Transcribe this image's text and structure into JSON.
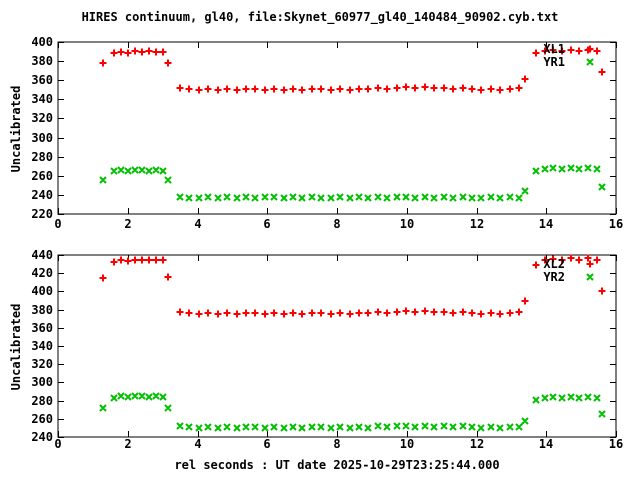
{
  "title": "HIRES continuum, gl40, file:Skynet_60977_gl40_140484_90902.cyb.txt",
  "xlabel": "rel seconds : UT date 2025-10-29T23:25:44.000",
  "colors": {
    "series_plus": "#ff0000",
    "series_cross": "#00c000",
    "frame": "#000000",
    "background": "#ffffff",
    "text": "#000000"
  },
  "chart_data": [
    {
      "type": "scatter",
      "ylabel": "Uncalibrated",
      "xlim": [
        0,
        16
      ],
      "ylim": [
        220,
        400
      ],
      "xtick_step": 2,
      "ytick_step": 20,
      "grid": false,
      "legend_position": "top-right-inside",
      "series": [
        {
          "name": "XL1",
          "marker": "plus",
          "color": "#ff0000",
          "points": [
            [
              1.3,
              378
            ],
            [
              1.6,
              389
            ],
            [
              1.8,
              390
            ],
            [
              2.0,
              389
            ],
            [
              2.2,
              391
            ],
            [
              2.4,
              390
            ],
            [
              2.6,
              391
            ],
            [
              2.8,
              390
            ],
            [
              3.0,
              390
            ],
            [
              3.15,
              378
            ],
            [
              3.5,
              352
            ],
            [
              3.77,
              351
            ],
            [
              4.04,
              350
            ],
            [
              4.31,
              351
            ],
            [
              4.58,
              350
            ],
            [
              4.85,
              351
            ],
            [
              5.12,
              350
            ],
            [
              5.39,
              351
            ],
            [
              5.66,
              351
            ],
            [
              5.93,
              350
            ],
            [
              6.2,
              351
            ],
            [
              6.47,
              350
            ],
            [
              6.74,
              351
            ],
            [
              7.01,
              350
            ],
            [
              7.28,
              351
            ],
            [
              7.55,
              351
            ],
            [
              7.82,
              350
            ],
            [
              8.09,
              351
            ],
            [
              8.36,
              350
            ],
            [
              8.63,
              351
            ],
            [
              8.9,
              351
            ],
            [
              9.17,
              352
            ],
            [
              9.44,
              351
            ],
            [
              9.71,
              352
            ],
            [
              9.98,
              353
            ],
            [
              10.25,
              352
            ],
            [
              10.52,
              353
            ],
            [
              10.79,
              352
            ],
            [
              11.06,
              352
            ],
            [
              11.33,
              351
            ],
            [
              11.6,
              352
            ],
            [
              11.87,
              351
            ],
            [
              12.14,
              350
            ],
            [
              12.41,
              351
            ],
            [
              12.68,
              350
            ],
            [
              12.95,
              351
            ],
            [
              13.22,
              352
            ],
            [
              13.4,
              361
            ],
            [
              13.7,
              388
            ],
            [
              13.95,
              391
            ],
            [
              14.2,
              392
            ],
            [
              14.45,
              391
            ],
            [
              14.7,
              392
            ],
            [
              14.95,
              391
            ],
            [
              15.2,
              392
            ],
            [
              15.45,
              391
            ],
            [
              15.6,
              369
            ]
          ]
        },
        {
          "name": "YR1",
          "marker": "cross",
          "color": "#00c000",
          "points": [
            [
              1.3,
              256
            ],
            [
              1.6,
              265
            ],
            [
              1.8,
              266
            ],
            [
              2.0,
              265
            ],
            [
              2.2,
              266
            ],
            [
              2.4,
              266
            ],
            [
              2.6,
              265
            ],
            [
              2.8,
              266
            ],
            [
              3.0,
              265
            ],
            [
              3.15,
              256
            ],
            [
              3.5,
              238
            ],
            [
              3.77,
              237
            ],
            [
              4.04,
              237
            ],
            [
              4.31,
              238
            ],
            [
              4.58,
              237
            ],
            [
              4.85,
              238
            ],
            [
              5.12,
              237
            ],
            [
              5.39,
              238
            ],
            [
              5.66,
              237
            ],
            [
              5.93,
              238
            ],
            [
              6.2,
              238
            ],
            [
              6.47,
              237
            ],
            [
              6.74,
              238
            ],
            [
              7.01,
              237
            ],
            [
              7.28,
              238
            ],
            [
              7.55,
              237
            ],
            [
              7.82,
              237
            ],
            [
              8.09,
              238
            ],
            [
              8.36,
              237
            ],
            [
              8.63,
              238
            ],
            [
              8.9,
              237
            ],
            [
              9.17,
              238
            ],
            [
              9.44,
              237
            ],
            [
              9.71,
              238
            ],
            [
              9.98,
              238
            ],
            [
              10.25,
              237
            ],
            [
              10.52,
              238
            ],
            [
              10.79,
              237
            ],
            [
              11.06,
              238
            ],
            [
              11.33,
              237
            ],
            [
              11.6,
              238
            ],
            [
              11.87,
              237
            ],
            [
              12.14,
              237
            ],
            [
              12.41,
              238
            ],
            [
              12.68,
              237
            ],
            [
              12.95,
              238
            ],
            [
              13.22,
              237
            ],
            [
              13.4,
              244
            ],
            [
              13.7,
              265
            ],
            [
              13.95,
              267
            ],
            [
              14.2,
              268
            ],
            [
              14.45,
              267
            ],
            [
              14.7,
              268
            ],
            [
              14.95,
              267
            ],
            [
              15.2,
              268
            ],
            [
              15.45,
              267
            ],
            [
              15.6,
              248
            ]
          ]
        }
      ]
    },
    {
      "type": "scatter",
      "ylabel": "Uncalibrated",
      "xlim": [
        0,
        16
      ],
      "ylim": [
        240,
        440
      ],
      "xtick_step": 2,
      "ytick_step": 20,
      "grid": false,
      "legend_position": "top-right-inside",
      "series": [
        {
          "name": "XL2",
          "marker": "plus",
          "color": "#ff0000",
          "points": [
            [
              1.3,
              415
            ],
            [
              1.6,
              432
            ],
            [
              1.8,
              434
            ],
            [
              2.0,
              433
            ],
            [
              2.2,
              435
            ],
            [
              2.4,
              434
            ],
            [
              2.6,
              435
            ],
            [
              2.8,
              434
            ],
            [
              3.0,
              434
            ],
            [
              3.15,
              416
            ],
            [
              3.5,
              377
            ],
            [
              3.77,
              376
            ],
            [
              4.04,
              375
            ],
            [
              4.31,
              376
            ],
            [
              4.58,
              375
            ],
            [
              4.85,
              376
            ],
            [
              5.12,
              375
            ],
            [
              5.39,
              376
            ],
            [
              5.66,
              376
            ],
            [
              5.93,
              375
            ],
            [
              6.2,
              376
            ],
            [
              6.47,
              375
            ],
            [
              6.74,
              376
            ],
            [
              7.01,
              375
            ],
            [
              7.28,
              376
            ],
            [
              7.55,
              376
            ],
            [
              7.82,
              375
            ],
            [
              8.09,
              376
            ],
            [
              8.36,
              375
            ],
            [
              8.63,
              376
            ],
            [
              8.9,
              376
            ],
            [
              9.17,
              377
            ],
            [
              9.44,
              376
            ],
            [
              9.71,
              377
            ],
            [
              9.98,
              378
            ],
            [
              10.25,
              377
            ],
            [
              10.52,
              378
            ],
            [
              10.79,
              377
            ],
            [
              11.06,
              377
            ],
            [
              11.33,
              376
            ],
            [
              11.6,
              377
            ],
            [
              11.87,
              376
            ],
            [
              12.14,
              375
            ],
            [
              12.41,
              376
            ],
            [
              12.68,
              375
            ],
            [
              12.95,
              376
            ],
            [
              13.22,
              377
            ],
            [
              13.4,
              389
            ],
            [
              13.7,
              429
            ],
            [
              13.95,
              434
            ],
            [
              14.2,
              436
            ],
            [
              14.45,
              434
            ],
            [
              14.7,
              437
            ],
            [
              14.95,
              435
            ],
            [
              15.2,
              437
            ],
            [
              15.45,
              434
            ],
            [
              15.6,
              400
            ]
          ]
        },
        {
          "name": "YR2",
          "marker": "cross",
          "color": "#00c000",
          "points": [
            [
              1.3,
              272
            ],
            [
              1.6,
              283
            ],
            [
              1.8,
              285
            ],
            [
              2.0,
              284
            ],
            [
              2.2,
              285
            ],
            [
              2.4,
              285
            ],
            [
              2.6,
              284
            ],
            [
              2.8,
              285
            ],
            [
              3.0,
              284
            ],
            [
              3.15,
              272
            ],
            [
              3.5,
              252
            ],
            [
              3.77,
              251
            ],
            [
              4.04,
              250
            ],
            [
              4.31,
              251
            ],
            [
              4.58,
              250
            ],
            [
              4.85,
              251
            ],
            [
              5.12,
              250
            ],
            [
              5.39,
              251
            ],
            [
              5.66,
              251
            ],
            [
              5.93,
              250
            ],
            [
              6.2,
              251
            ],
            [
              6.47,
              250
            ],
            [
              6.74,
              251
            ],
            [
              7.01,
              250
            ],
            [
              7.28,
              251
            ],
            [
              7.55,
              251
            ],
            [
              7.82,
              250
            ],
            [
              8.09,
              251
            ],
            [
              8.36,
              250
            ],
            [
              8.63,
              251
            ],
            [
              8.9,
              250
            ],
            [
              9.17,
              252
            ],
            [
              9.44,
              251
            ],
            [
              9.71,
              252
            ],
            [
              9.98,
              252
            ],
            [
              10.25,
              251
            ],
            [
              10.52,
              252
            ],
            [
              10.79,
              251
            ],
            [
              11.06,
              252
            ],
            [
              11.33,
              251
            ],
            [
              11.6,
              252
            ],
            [
              11.87,
              251
            ],
            [
              12.14,
              250
            ],
            [
              12.41,
              251
            ],
            [
              12.68,
              250
            ],
            [
              12.95,
              251
            ],
            [
              13.22,
              251
            ],
            [
              13.4,
              258
            ],
            [
              13.7,
              281
            ],
            [
              13.95,
              283
            ],
            [
              14.2,
              284
            ],
            [
              14.45,
              283
            ],
            [
              14.7,
              284
            ],
            [
              14.95,
              283
            ],
            [
              15.2,
              284
            ],
            [
              15.45,
              283
            ],
            [
              15.6,
              265
            ]
          ]
        }
      ]
    }
  ]
}
